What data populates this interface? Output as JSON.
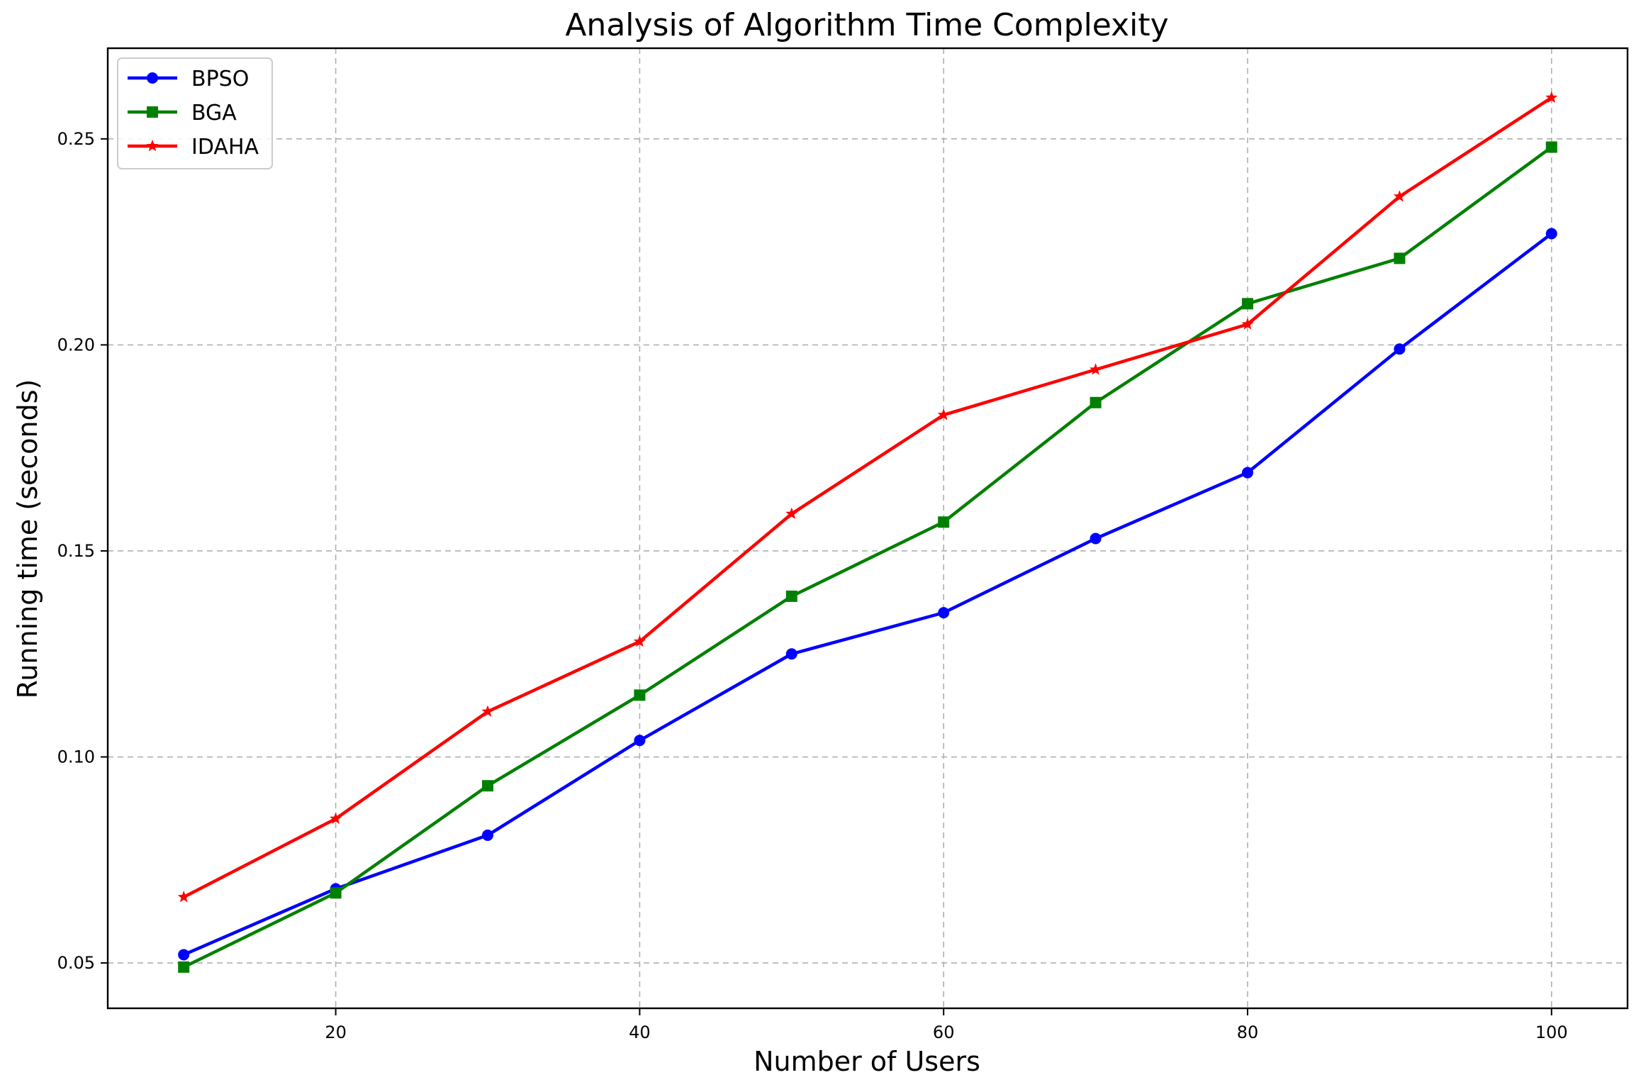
{
  "chart_data": {
    "type": "line",
    "title": "Analysis of Algorithm Time Complexity",
    "xlabel": "Number of Users",
    "ylabel": "Running time (seconds)",
    "x": [
      10,
      20,
      30,
      40,
      50,
      60,
      70,
      80,
      90,
      100
    ],
    "xlim": [
      5,
      105
    ],
    "ylim": [
      0.039,
      0.272
    ],
    "xticks": [
      20,
      40,
      60,
      80,
      100
    ],
    "xtick_labels": [
      "20",
      "40",
      "60",
      "80",
      "100"
    ],
    "yticks": [
      0.05,
      0.1,
      0.15,
      0.2,
      0.25
    ],
    "ytick_labels": [
      "0.05",
      "0.10",
      "0.15",
      "0.20",
      "0.25"
    ],
    "grid": true,
    "legend_position": "top-left",
    "series": [
      {
        "name": "BPSO",
        "color": "#0000ff",
        "marker": "circle",
        "values": [
          0.052,
          0.068,
          0.081,
          0.104,
          0.125,
          0.135,
          0.153,
          0.169,
          0.199,
          0.227
        ]
      },
      {
        "name": "BGA",
        "color": "#008000",
        "marker": "square",
        "values": [
          0.049,
          0.067,
          0.093,
          0.115,
          0.139,
          0.157,
          0.186,
          0.21,
          0.221,
          0.248
        ]
      },
      {
        "name": "IDAHA",
        "color": "#ff0000",
        "marker": "star",
        "values": [
          0.066,
          0.085,
          0.111,
          0.128,
          0.159,
          0.183,
          0.194,
          0.205,
          0.236,
          0.26
        ]
      }
    ]
  }
}
